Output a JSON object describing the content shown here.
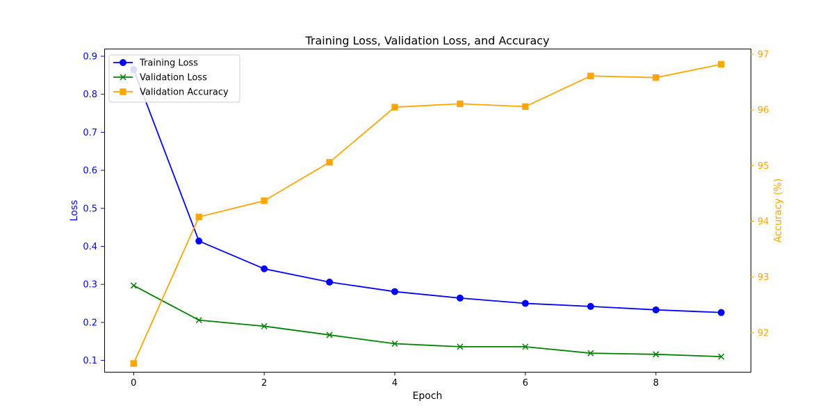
{
  "chart_data": {
    "type": "line",
    "title": "Training Loss, Validation Loss, and Accuracy",
    "xlabel": "Epoch",
    "ylabel_left": "Loss",
    "ylabel_right": "Accuracy (%)",
    "x": [
      0,
      1,
      2,
      3,
      4,
      5,
      6,
      7,
      8,
      9
    ],
    "xlim": [
      -0.45,
      9.45
    ],
    "ylim_left": [
      0.07,
      0.92
    ],
    "ylim_right": [
      91.3,
      97.1
    ],
    "x_ticks": [
      0,
      2,
      4,
      6,
      8
    ],
    "y_left_ticks": [
      0.1,
      0.2,
      0.3,
      0.4,
      0.5,
      0.6,
      0.7,
      0.8,
      0.9
    ],
    "y_right_ticks": [
      92,
      93,
      94,
      95,
      96,
      97
    ],
    "grid": false,
    "legend_position": "top-left",
    "series": [
      {
        "name": "Training Loss",
        "axis": "left",
        "color": "#0000ff",
        "marker": "circle",
        "values": [
          0.865,
          0.414,
          0.341,
          0.306,
          0.281,
          0.264,
          0.25,
          0.242,
          0.233,
          0.226
        ]
      },
      {
        "name": "Validation Loss",
        "axis": "left",
        "color": "#008000",
        "marker": "x",
        "values": [
          0.297,
          0.206,
          0.19,
          0.167,
          0.144,
          0.136,
          0.136,
          0.119,
          0.116,
          0.11
        ]
      },
      {
        "name": "Validation Accuracy",
        "axis": "right",
        "color": "#ffa500",
        "marker": "square",
        "values": [
          91.45,
          94.08,
          94.37,
          95.06,
          96.05,
          96.11,
          96.06,
          96.61,
          96.58,
          96.82
        ]
      }
    ],
    "colors": {
      "left_axis": "#0000ff",
      "right_axis": "#ffa500"
    }
  }
}
